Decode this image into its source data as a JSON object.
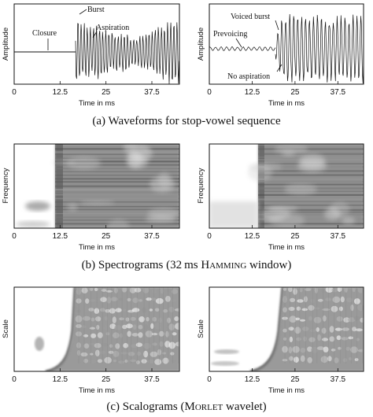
{
  "ticks_x": [
    "0",
    "12.5",
    "25",
    "37.5"
  ],
  "xlabel": "Time in ms",
  "waveforms": {
    "ylabel": "Amplitude",
    "left_annotations": {
      "closure": "Closure",
      "burst": "Burst",
      "aspiration": "Aspiration"
    },
    "right_annotations": {
      "voiced_burst": "Voiced burst",
      "prevoicing": "Prevoicing",
      "no_aspiration": "No aspiration"
    },
    "caption": "(a) Waveforms for stop-vowel sequence"
  },
  "spectrograms": {
    "ylabel": "Frequency",
    "caption_pre": "(b) Spectrograms (32 ms ",
    "caption_sc": "Hamming",
    "caption_post": " window)"
  },
  "scalograms": {
    "ylabel": "Scale",
    "caption_pre": "(c) Scalograms (",
    "caption_sc": "Morlet",
    "caption_post": " wavelet)"
  }
}
